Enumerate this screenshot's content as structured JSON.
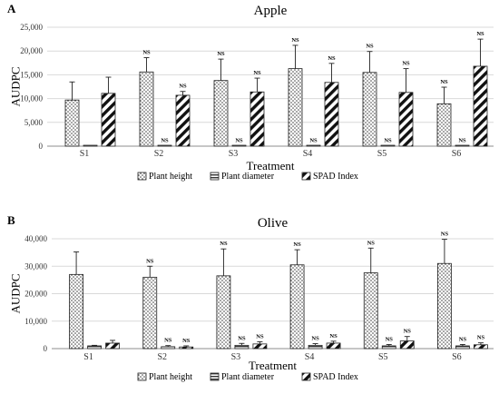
{
  "chart_data": [
    {
      "panel_label": "A",
      "type": "bar",
      "title": "Apple",
      "xlabel": "Treatment",
      "ylabel": "AUDPC",
      "ylim": [
        0,
        25000
      ],
      "ytick_values": [
        0,
        5000,
        10000,
        15000,
        20000,
        25000
      ],
      "ytick_labels": [
        "0",
        "5,000",
        "10,000",
        "15,000",
        "20,000",
        "25,000"
      ],
      "categories": [
        "S1",
        "S2",
        "S3",
        "S4",
        "S5",
        "S6"
      ],
      "grid": "horizontal",
      "legend_position": "bottom",
      "series": [
        {
          "name": "Plant height",
          "pattern": "dots",
          "values": [
            9700,
            15600,
            13800,
            16300,
            15500,
            8900
          ],
          "errors": [
            3800,
            3000,
            4500,
            4900,
            4400,
            3500
          ],
          "annotations": [
            "",
            "NS",
            "NS",
            "NS",
            "NS",
            "NS"
          ]
        },
        {
          "name": "Plant diameter",
          "pattern": "horizontal-lines",
          "values": [
            100,
            100,
            100,
            100,
            100,
            100
          ],
          "errors": [
            0,
            0,
            0,
            0,
            0,
            0
          ],
          "annotations": [
            "",
            "NS",
            "NS",
            "NS",
            "NS",
            "NS"
          ]
        },
        {
          "name": "SPAD Index",
          "pattern": "diagonal-stripes",
          "values": [
            11100,
            10700,
            11400,
            13400,
            11300,
            16800
          ],
          "errors": [
            3400,
            800,
            2900,
            4000,
            5000,
            5700
          ],
          "annotations": [
            "",
            "NS",
            "NS",
            "NS",
            "NS",
            "NS"
          ]
        }
      ]
    },
    {
      "panel_label": "B",
      "type": "bar",
      "title": "Olive",
      "xlabel": "Treatment",
      "ylabel": "AUDPC",
      "ylim": [
        0,
        40000
      ],
      "ytick_values": [
        0,
        10000,
        20000,
        30000,
        40000
      ],
      "ytick_labels": [
        "0",
        "10,000",
        "20,000",
        "30,000",
        "40,000"
      ],
      "categories": [
        "S1",
        "S2",
        "S3",
        "S4",
        "S5",
        "S6"
      ],
      "grid": "horizontal",
      "legend_position": "bottom",
      "series": [
        {
          "name": "Plant height",
          "pattern": "dots",
          "values": [
            27000,
            26000,
            26500,
            30500,
            27600,
            31000
          ],
          "errors": [
            8200,
            4000,
            9800,
            5500,
            9000,
            8800
          ],
          "annotations": [
            "",
            "NS",
            "NS",
            "NS",
            "NS",
            "NS"
          ]
        },
        {
          "name": "Plant diameter",
          "pattern": "horizontal-lines",
          "values": [
            1000,
            700,
            1200,
            1200,
            1000,
            1000
          ],
          "errors": [
            200,
            400,
            700,
            600,
            500,
            500
          ],
          "annotations": [
            "",
            "NS",
            "NS",
            "NS",
            "NS",
            "NS"
          ]
        },
        {
          "name": "SPAD Index",
          "pattern": "diagonal-stripes",
          "values": [
            2000,
            600,
            1700,
            2000,
            2800,
            1400
          ],
          "errors": [
            1000,
            400,
            800,
            700,
            1600,
            700
          ],
          "annotations": [
            "",
            "NS",
            "NS",
            "NS",
            "NS",
            "NS"
          ]
        }
      ]
    }
  ]
}
